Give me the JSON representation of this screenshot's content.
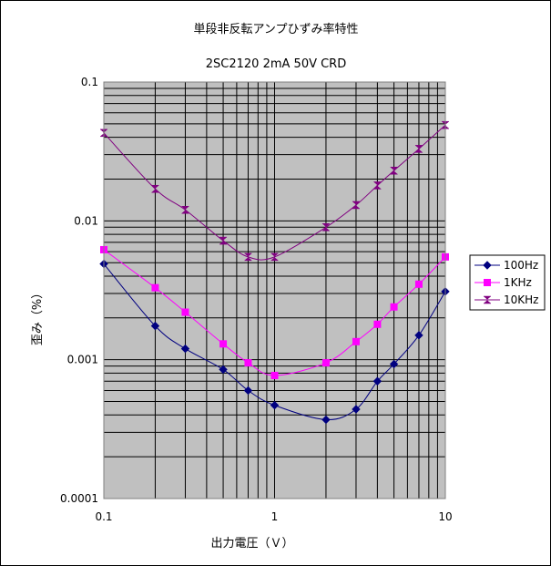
{
  "chart_data": {
    "type": "line",
    "title": "単段非反転アンプひずみ率特性",
    "subtitle": "2SC2120 2mA 50V CRD",
    "xlabel": "出力電圧（Ｖ）",
    "ylabel": "歪み（%）",
    "x_scale": "log",
    "y_scale": "log",
    "xlim": [
      0.1,
      10
    ],
    "ylim": [
      0.0001,
      0.1
    ],
    "x_ticks": [
      {
        "value": 0.1,
        "label": "0.1"
      },
      {
        "value": 1,
        "label": "1"
      },
      {
        "value": 10,
        "label": "10"
      }
    ],
    "y_ticks": [
      {
        "value": 0.1,
        "label": "0.1"
      },
      {
        "value": 0.01,
        "label": "0.01"
      },
      {
        "value": 0.001,
        "label": "0.001"
      },
      {
        "value": 0.0001,
        "label": "0.0001"
      }
    ],
    "grid": true,
    "plot_background": "#c0c0c0",
    "legend_position": "right",
    "series": [
      {
        "name": "100Hz",
        "color": "#000080",
        "marker": "diamond",
        "x": [
          0.1,
          0.2,
          0.3,
          0.5,
          0.7,
          1,
          2,
          3,
          4,
          5,
          7,
          10
        ],
        "y": [
          0.0049,
          0.00175,
          0.0012,
          0.00085,
          0.0006,
          0.00047,
          0.00037,
          0.00044,
          0.0007,
          0.00093,
          0.0015,
          0.0031
        ]
      },
      {
        "name": "1KHz",
        "color": "#ff00ff",
        "marker": "square",
        "x": [
          0.1,
          0.2,
          0.3,
          0.5,
          0.7,
          1,
          2,
          3,
          4,
          5,
          7,
          10
        ],
        "y": [
          0.0062,
          0.0033,
          0.0022,
          0.0013,
          0.00095,
          0.00077,
          0.00095,
          0.00135,
          0.0018,
          0.0024,
          0.0035,
          0.0055
        ]
      },
      {
        "name": "10KHz",
        "color": "#800080",
        "marker": "hourglass",
        "x": [
          0.1,
          0.2,
          0.3,
          0.5,
          0.7,
          1,
          2,
          3,
          4,
          5,
          7,
          10
        ],
        "y": [
          0.043,
          0.017,
          0.012,
          0.0072,
          0.0055,
          0.0055,
          0.009,
          0.013,
          0.018,
          0.023,
          0.033,
          0.049
        ]
      }
    ]
  }
}
